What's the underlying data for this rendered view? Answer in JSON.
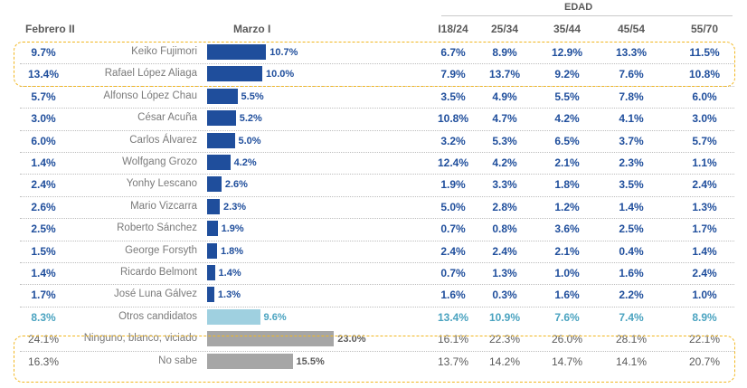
{
  "headers": {
    "febrero": "Febrero II",
    "marzo": "Marzo I",
    "edad": "EDAD",
    "age_groups": [
      "I18/24",
      "25/34",
      "35/44",
      "45/54",
      "55/70"
    ]
  },
  "colors": {
    "primary": "#1f4e9c",
    "light": "#9fd0e0",
    "light_text": "#4aa3c0",
    "gray": "#a6a6a6",
    "gray_text": "#5a5a5a",
    "highlight_border": "#f2b720"
  },
  "chart_data": {
    "type": "bar",
    "title": "Marzo I",
    "xlim": [
      0,
      25
    ],
    "categories": [
      "Keiko Fujimori",
      "Rafael López Aliaga",
      "Alfonso López Chau",
      "César Acuña",
      "Carlos Álvarez",
      "Wolfgang Grozo",
      "Yonhy Lescano",
      "Mario Vizcarra",
      "Roberto Sánchez",
      "George Forsyth",
      "Ricardo Belmont",
      "José Luna Gálvez",
      "Otros candidatos",
      "Ninguno, blanco, viciado",
      "No sabe"
    ],
    "rows": [
      {
        "name": "Keiko Fujimori",
        "feb": "9.7%",
        "value": 10.7,
        "label": "10.7%",
        "style": "primary",
        "ages": [
          "6.7%",
          "8.9%",
          "12.9%",
          "13.3%",
          "11.5%"
        ]
      },
      {
        "name": "Rafael López Aliaga",
        "feb": "13.4%",
        "value": 10.0,
        "label": "10.0%",
        "style": "primary",
        "ages": [
          "7.9%",
          "13.7%",
          "9.2%",
          "7.6%",
          "10.8%"
        ]
      },
      {
        "name": "Alfonso López Chau",
        "feb": "5.7%",
        "value": 5.5,
        "label": "5.5%",
        "style": "primary",
        "ages": [
          "3.5%",
          "4.9%",
          "5.5%",
          "7.8%",
          "6.0%"
        ]
      },
      {
        "name": "César Acuña",
        "feb": "3.0%",
        "value": 5.2,
        "label": "5.2%",
        "style": "primary",
        "ages": [
          "10.8%",
          "4.7%",
          "4.2%",
          "4.1%",
          "3.0%"
        ]
      },
      {
        "name": "Carlos Álvarez",
        "feb": "6.0%",
        "value": 5.0,
        "label": "5.0%",
        "style": "primary",
        "ages": [
          "3.2%",
          "5.3%",
          "6.5%",
          "3.7%",
          "5.7%"
        ]
      },
      {
        "name": "Wolfgang Grozo",
        "feb": "1.4%",
        "value": 4.2,
        "label": "4.2%",
        "style": "primary",
        "ages": [
          "12.4%",
          "4.2%",
          "2.1%",
          "2.3%",
          "1.1%"
        ]
      },
      {
        "name": "Yonhy Lescano",
        "feb": "2.4%",
        "value": 2.6,
        "label": "2.6%",
        "style": "primary",
        "ages": [
          "1.9%",
          "3.3%",
          "1.8%",
          "3.5%",
          "2.4%"
        ]
      },
      {
        "name": "Mario Vizcarra",
        "feb": "2.6%",
        "value": 2.3,
        "label": "2.3%",
        "style": "primary",
        "ages": [
          "5.0%",
          "2.8%",
          "1.2%",
          "1.4%",
          "1.3%"
        ]
      },
      {
        "name": "Roberto Sánchez",
        "feb": "2.5%",
        "value": 1.9,
        "label": "1.9%",
        "style": "primary",
        "ages": [
          "0.7%",
          "0.8%",
          "3.6%",
          "2.5%",
          "1.7%"
        ]
      },
      {
        "name": "George Forsyth",
        "feb": "1.5%",
        "value": 1.8,
        "label": "1.8%",
        "style": "primary",
        "ages": [
          "2.4%",
          "2.4%",
          "2.1%",
          "0.4%",
          "1.4%"
        ]
      },
      {
        "name": "Ricardo Belmont",
        "feb": "1.4%",
        "value": 1.4,
        "label": "1.4%",
        "style": "primary",
        "ages": [
          "0.7%",
          "1.3%",
          "1.0%",
          "1.6%",
          "2.4%"
        ]
      },
      {
        "name": "José Luna Gálvez",
        "feb": "1.7%",
        "value": 1.3,
        "label": "1.3%",
        "style": "primary",
        "ages": [
          "1.6%",
          "0.3%",
          "1.6%",
          "2.2%",
          "1.0%"
        ]
      },
      {
        "name": "Otros candidatos",
        "feb": "8.3%",
        "value": 9.6,
        "label": "9.6%",
        "style": "light",
        "ages": [
          "13.4%",
          "10.9%",
          "7.6%",
          "7.4%",
          "8.9%"
        ]
      },
      {
        "name": "Ninguno, blanco, viciado",
        "feb": "24.1%",
        "value": 23.0,
        "label": "23.0%",
        "style": "gray",
        "ages": [
          "16.1%",
          "22.3%",
          "26.0%",
          "28.1%",
          "22.1%"
        ]
      },
      {
        "name": "No sabe",
        "feb": "16.3%",
        "value": 15.5,
        "label": "15.5%",
        "style": "gray",
        "ages": [
          "13.7%",
          "14.2%",
          "14.7%",
          "14.1%",
          "20.7%"
        ]
      }
    ]
  }
}
